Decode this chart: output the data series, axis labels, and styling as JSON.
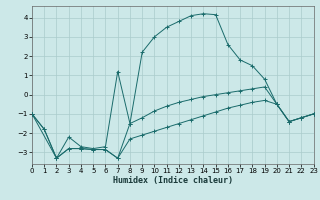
{
  "xlabel": "Humidex (Indice chaleur)",
  "xlim": [
    0,
    23
  ],
  "ylim": [
    -3.6,
    4.6
  ],
  "yticks": [
    -3,
    -2,
    -1,
    0,
    1,
    2,
    3,
    4
  ],
  "xticks": [
    0,
    1,
    2,
    3,
    4,
    5,
    6,
    7,
    8,
    9,
    10,
    11,
    12,
    13,
    14,
    15,
    16,
    17,
    18,
    19,
    20,
    21,
    22,
    23
  ],
  "background_color": "#cce8e8",
  "grid_color": "#aacccc",
  "line_color": "#1a6b6b",
  "curve1_x": [
    0,
    1,
    2,
    3,
    4,
    5,
    6,
    7,
    8,
    9,
    10,
    11,
    12,
    13,
    14,
    15,
    16,
    17,
    18,
    19,
    20,
    21,
    22,
    23
  ],
  "curve1_y": [
    -1.0,
    -1.8,
    -3.3,
    -2.2,
    -2.7,
    -2.8,
    -2.7,
    1.2,
    -1.5,
    2.2,
    3.0,
    3.5,
    3.8,
    4.1,
    4.2,
    4.15,
    2.6,
    1.8,
    1.5,
    0.8,
    -0.5,
    -1.4,
    -1.2,
    -1.0
  ],
  "curve2_x": [
    0,
    1,
    2,
    3,
    4,
    5,
    6,
    7,
    8,
    9,
    10,
    11,
    12,
    13,
    14,
    15,
    16,
    17,
    18,
    19,
    20,
    21,
    22,
    23
  ],
  "curve2_y": [
    -1.0,
    -1.8,
    -3.3,
    -2.8,
    -2.8,
    -2.85,
    -2.85,
    -3.3,
    -2.3,
    -2.1,
    -1.9,
    -1.7,
    -1.5,
    -1.3,
    -1.1,
    -0.9,
    -0.7,
    -0.55,
    -0.4,
    -0.3,
    -0.5,
    -1.4,
    -1.2,
    -1.0
  ],
  "curve3_x": [
    0,
    2,
    3,
    4,
    5,
    6,
    7,
    8,
    9,
    10,
    11,
    12,
    13,
    14,
    15,
    16,
    17,
    18,
    19,
    20,
    21,
    22,
    23
  ],
  "curve3_y": [
    -1.0,
    -3.3,
    -2.8,
    -2.8,
    -2.85,
    -2.85,
    -3.3,
    -1.5,
    -1.2,
    -0.85,
    -0.6,
    -0.4,
    -0.25,
    -0.1,
    0.0,
    0.1,
    0.2,
    0.3,
    0.4,
    -0.5,
    -1.4,
    -1.2,
    -1.0
  ]
}
